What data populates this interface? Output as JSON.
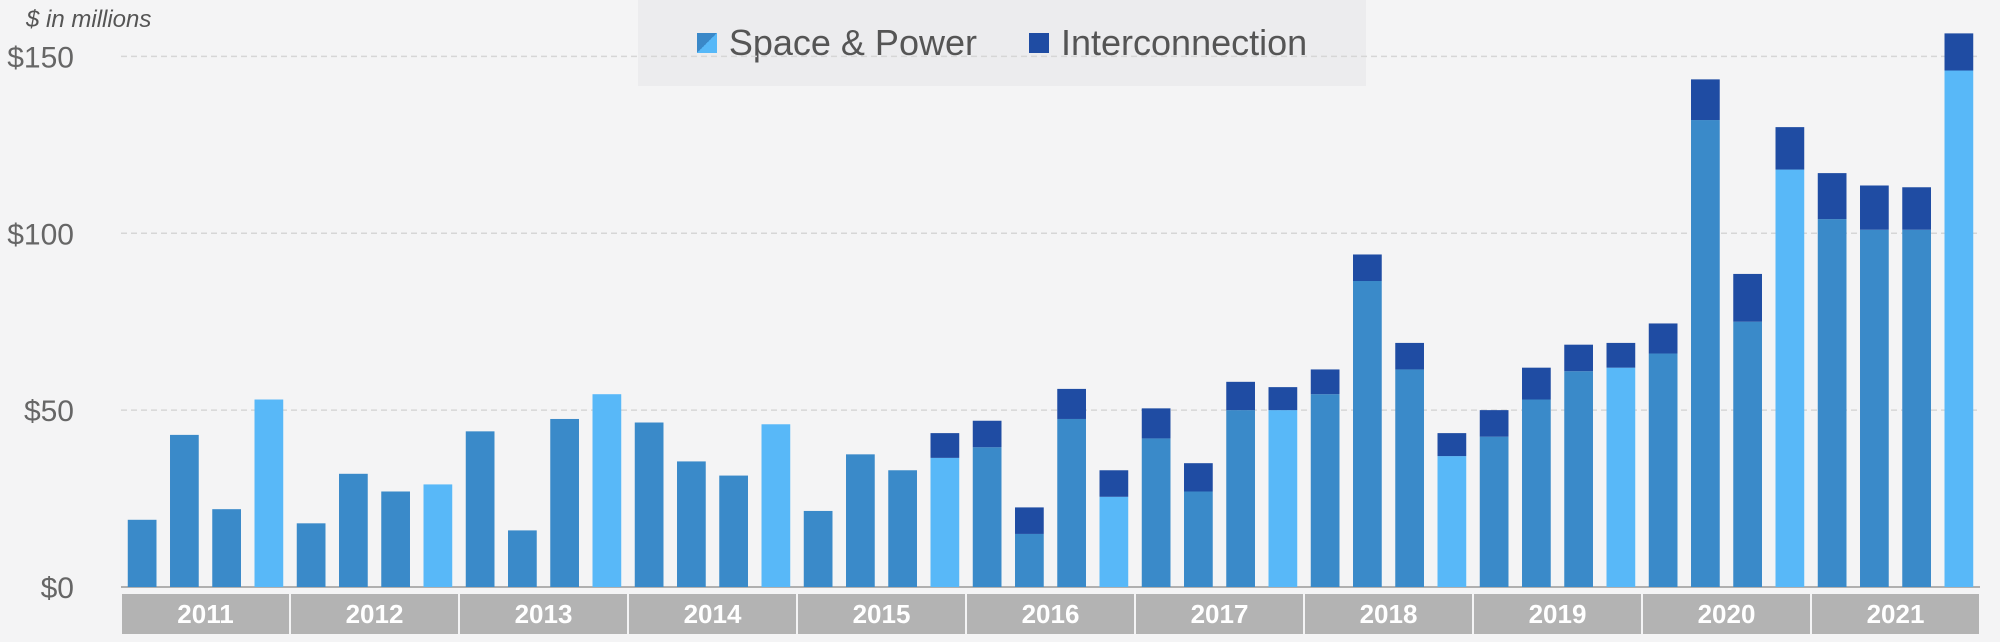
{
  "chart_data": {
    "type": "bar",
    "stacked": true,
    "units_label": "$ in millions",
    "legend": [
      "Space & Power",
      "Interconnection"
    ],
    "colors": {
      "space_power": "#3a8ac9",
      "space_power_q4": "#58b8f8",
      "interconnection": "#1f4ca3",
      "year_band": "#b3b3b3",
      "grid": "#d6d6d6",
      "tick_text": "#666666"
    },
    "y_ticks": [
      "$0",
      "$50",
      "$100",
      "$150"
    ],
    "y_tick_values": [
      0,
      50,
      100,
      150
    ],
    "ylim": [
      0,
      160
    ],
    "years": [
      "2011",
      "2012",
      "2013",
      "2014",
      "2015",
      "2016",
      "2017",
      "2018",
      "2019",
      "2020",
      "2021"
    ],
    "quarters_per_year": 4,
    "series": [
      {
        "name": "Space & Power",
        "values": [
          19,
          43,
          22,
          53,
          18,
          32,
          27,
          29,
          44,
          16,
          47.5,
          54.5,
          46.5,
          35.5,
          31.5,
          46,
          21.5,
          37.5,
          33,
          36.5,
          39.5,
          15,
          47.5,
          25.5,
          42,
          27,
          50,
          50,
          54.5,
          86.5,
          61.5,
          37,
          42.5,
          53,
          61,
          62,
          66,
          132,
          75,
          118,
          104,
          101,
          101,
          146
        ]
      },
      {
        "name": "Interconnection",
        "values": [
          0,
          0,
          0,
          0,
          0,
          0,
          0,
          0,
          0,
          0,
          0,
          0,
          0,
          0,
          0,
          0,
          0,
          0,
          0,
          7,
          7.5,
          7.5,
          8.5,
          7.5,
          8.5,
          8,
          8,
          6.5,
          7,
          7.5,
          7.5,
          6.5,
          7.5,
          9,
          7.5,
          7,
          8.5,
          11.5,
          13.5,
          12,
          13,
          12.5,
          12,
          10.5
        ]
      }
    ]
  }
}
